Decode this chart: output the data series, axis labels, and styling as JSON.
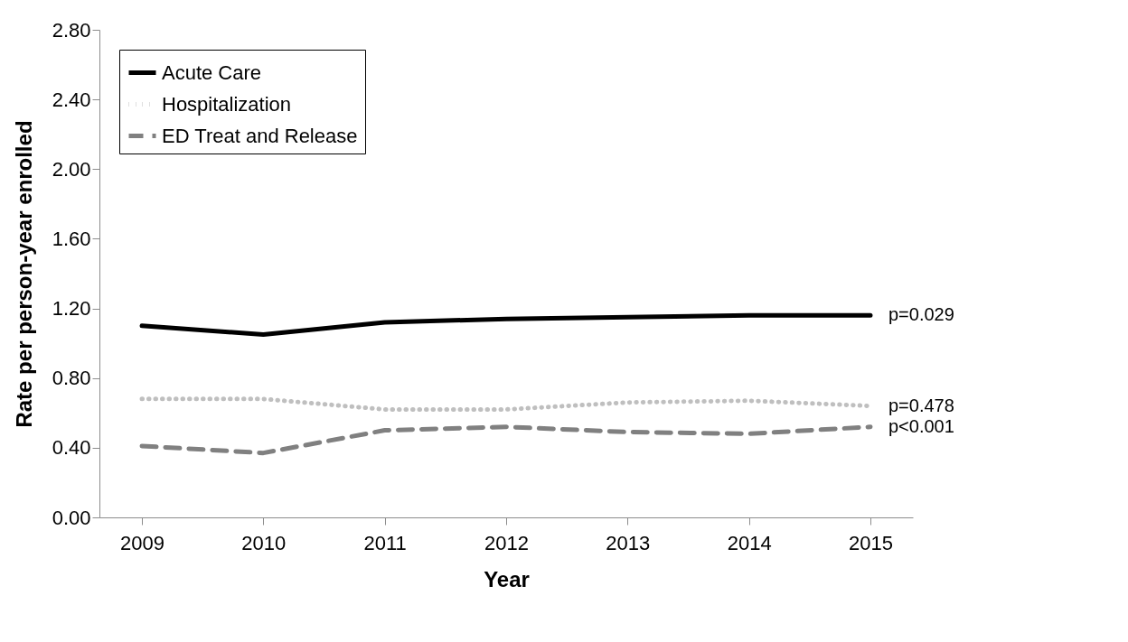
{
  "chart_data": {
    "type": "line",
    "xlabel": "Year",
    "ylabel": "Rate per person-year enrolled",
    "categories": [
      "2009",
      "2010",
      "2011",
      "2012",
      "2013",
      "2014",
      "2015"
    ],
    "series": [
      {
        "name": "Acute Care",
        "color": "#000000",
        "line_style": "solid",
        "values": [
          1.1,
          1.05,
          1.12,
          1.14,
          1.15,
          1.16,
          1.16
        ]
      },
      {
        "name": "Hospitalization",
        "color": "#bfbfbf",
        "line_style": "dotted",
        "values": [
          0.68,
          0.68,
          0.62,
          0.62,
          0.66,
          0.67,
          0.64
        ]
      },
      {
        "name": "ED Treat and Release",
        "color": "#808080",
        "line_style": "dashed",
        "values": [
          0.41,
          0.37,
          0.5,
          0.52,
          0.49,
          0.48,
          0.52
        ]
      }
    ],
    "ylim": [
      0,
      2.8
    ],
    "yticks": [
      {
        "value": 0,
        "label": "0.00"
      },
      {
        "value": 0.4,
        "label": "0.40"
      },
      {
        "value": 0.8,
        "label": "0.80"
      },
      {
        "value": 1.2,
        "label": "1.20"
      },
      {
        "value": 1.6,
        "label": "1.60"
      },
      {
        "value": 2.0,
        "label": "2.00"
      },
      {
        "value": 2.4,
        "label": "2.40"
      },
      {
        "value": 2.8,
        "label": "2.80"
      }
    ],
    "annotations": [
      {
        "text": "p=0.029",
        "x": "2015",
        "y": 1.16
      },
      {
        "text": "p=0.478",
        "x": "2015",
        "y": 0.64
      },
      {
        "text": "p<0.001",
        "x": "2015",
        "y": 0.52
      }
    ],
    "legend": "top left",
    "grid": false,
    "marker": "none"
  }
}
